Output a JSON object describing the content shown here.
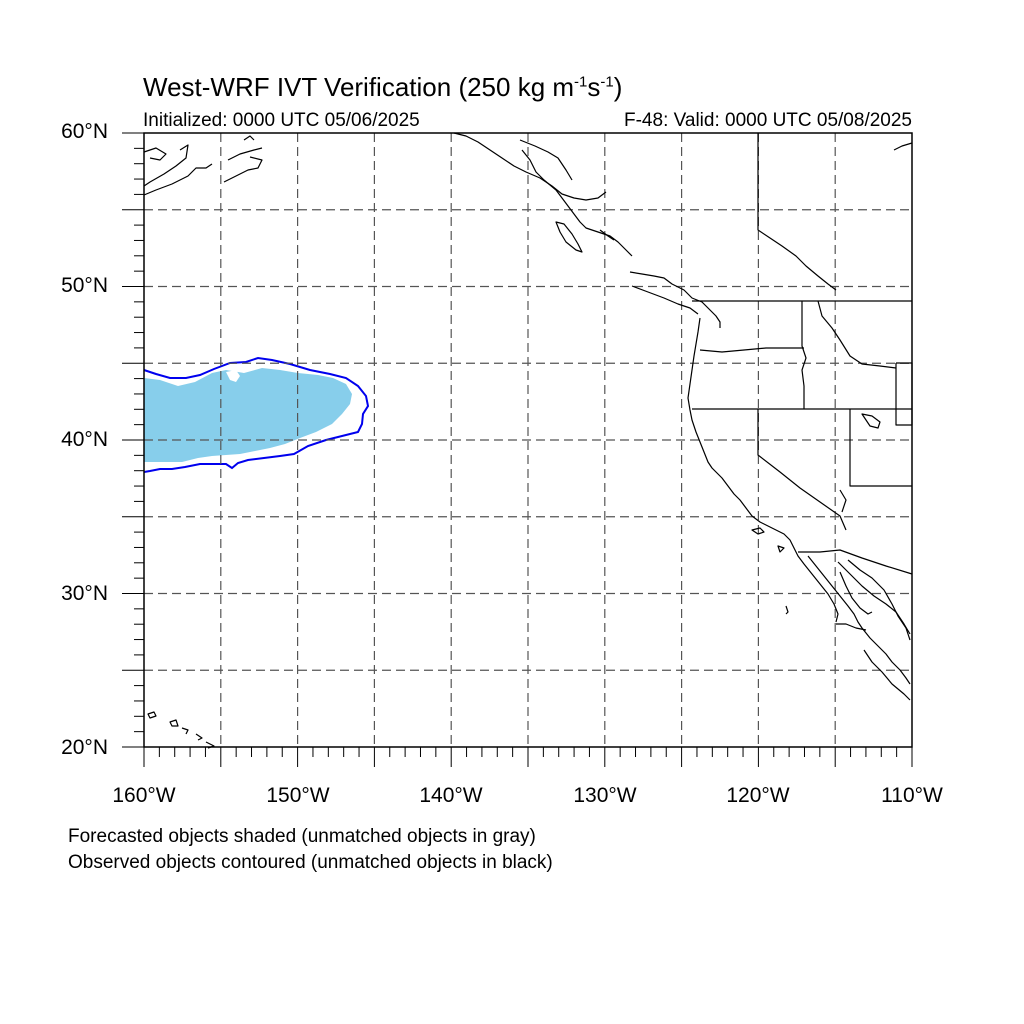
{
  "title": {
    "prefix": "West-WRF IVT Verification (250 kg m",
    "sup1": "-1",
    "mid": "s",
    "sup2": "-1",
    "suffix": ")"
  },
  "subtitle_left": "Initialized: 0000 UTC 05/06/2025",
  "subtitle_right": "F-48: Valid: 0000 UTC 05/08/2025",
  "lat_labels": [
    "60°N",
    "50°N",
    "40°N",
    "30°N",
    "20°N"
  ],
  "lon_labels": [
    "160°W",
    "150°W",
    "140°W",
    "130°W",
    "120°W",
    "110°W"
  ],
  "footnotes": [
    "Forecasted objects shaded (unmatched objects in gray)",
    "Observed objects contoured (unmatched objects in black)"
  ],
  "map": {
    "lon_range": [
      -160,
      -110
    ],
    "lat_range": [
      20,
      60
    ],
    "grid_spacing_deg": 5,
    "forecast_fill_color": "#87ceeb",
    "observed_contour_color": "#0000ee",
    "coastline_color": "#000000"
  }
}
